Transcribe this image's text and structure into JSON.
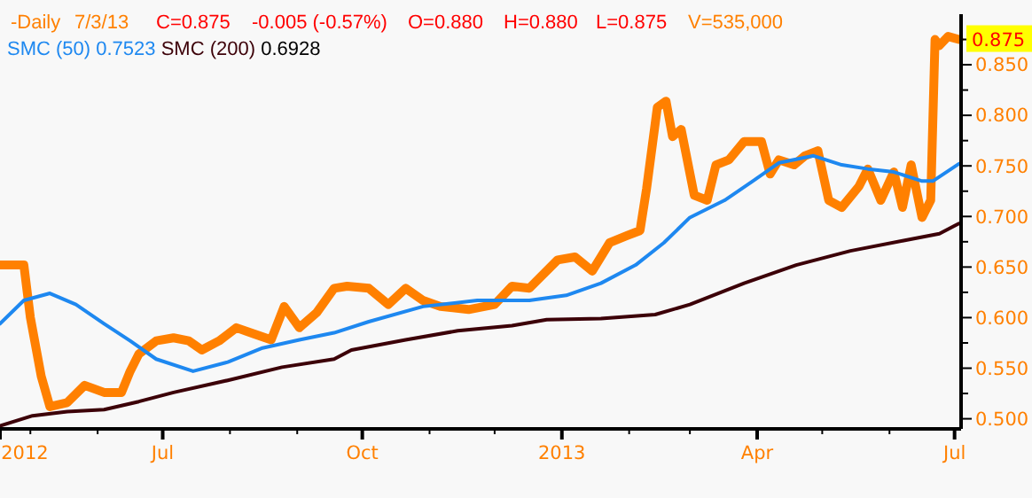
{
  "chart_data": {
    "type": "line",
    "legend": "top left",
    "marker": "none",
    "line_style": "solid",
    "grid": false,
    "annotations": [
      "-Daily",
      "7/3/13",
      "C=0.875",
      "-0.005 (-0.57%)",
      "O=0.880",
      "H=0.880",
      "L=0.875",
      "V=535,000",
      "0.7523",
      "0.6928",
      {
        "text": "0.875",
        "x": "2013-07-03",
        "y": 0.875
      }
    ],
    "xlim": [
      "2012-04-17",
      "2013-07-04"
    ],
    "xticks": [
      {
        "value": "2012-04-17",
        "label": "2012"
      },
      {
        "value": "2012-05-01",
        "label": null
      },
      {
        "value": "2012-06-01",
        "label": null
      },
      {
        "value": "2012-07-01",
        "label": "Jul"
      },
      {
        "value": "2012-08-01",
        "label": null
      },
      {
        "value": "2012-09-01",
        "label": null
      },
      {
        "value": "2012-10-01",
        "label": "Oct"
      },
      {
        "value": "2012-11-01",
        "label": null
      },
      {
        "value": "2012-12-01",
        "label": null
      },
      {
        "value": "2013-01-01",
        "label": "2013"
      },
      {
        "value": "2013-02-01",
        "label": null
      },
      {
        "value": "2013-03-01",
        "label": null
      },
      {
        "value": "2013-04-01",
        "label": "Apr"
      },
      {
        "value": "2013-05-01",
        "label": null
      },
      {
        "value": "2013-06-01",
        "label": null
      },
      {
        "value": "2013-07-01",
        "label": "Jul"
      }
    ],
    "ylim": [
      0.49,
      0.9
    ],
    "yticks": [
      {
        "value": 0.5,
        "label": "0.500"
      },
      {
        "value": 0.525,
        "label": null
      },
      {
        "value": 0.55,
        "label": "0.550"
      },
      {
        "value": 0.575,
        "label": null
      },
      {
        "value": 0.6,
        "label": "0.600"
      },
      {
        "value": 0.625,
        "label": null
      },
      {
        "value": 0.65,
        "label": "0.650"
      },
      {
        "value": 0.675,
        "label": null
      },
      {
        "value": 0.7,
        "label": "0.700"
      },
      {
        "value": 0.725,
        "label": null
      },
      {
        "value": 0.75,
        "label": "0.750"
      },
      {
        "value": 0.775,
        "label": null
      },
      {
        "value": 0.8,
        "label": "0.800"
      },
      {
        "value": 0.825,
        "label": null
      },
      {
        "value": 0.85,
        "label": "0.850"
      },
      {
        "value": 0.875,
        "label": null
      }
    ],
    "series": [
      {
        "color": "#ff8000",
        "x": [
          "2012-04-17",
          "2012-04-28",
          "2012-05-01",
          "2012-05-06",
          "2012-05-10",
          "2012-05-18",
          "2012-05-26",
          "2012-06-04",
          "2012-06-12",
          "2012-06-16",
          "2012-06-20",
          "2012-06-28",
          "2012-07-06",
          "2012-07-13",
          "2012-07-19",
          "2012-07-27",
          "2012-08-04",
          "2012-08-12",
          "2012-08-20",
          "2012-08-26",
          "2012-09-02",
          "2012-09-10",
          "2012-09-18",
          "2012-09-24",
          "2012-10-04",
          "2012-10-13",
          "2012-10-21",
          "2012-10-29",
          "2012-11-06",
          "2012-11-19",
          "2012-12-01",
          "2012-12-09",
          "2012-12-17",
          "2012-12-30",
          "2013-01-07",
          "2013-01-15",
          "2013-01-23",
          "2013-01-31",
          "2013-02-06",
          "2013-02-09",
          "2013-02-14",
          "2013-02-18",
          "2013-02-21",
          "2013-02-25",
          "2013-03-03",
          "2013-03-09",
          "2013-03-13",
          "2013-03-19",
          "2013-03-26",
          "2013-04-03",
          "2013-04-07",
          "2013-04-11",
          "2013-04-18",
          "2013-04-23",
          "2013-04-29",
          "2013-05-04",
          "2013-05-10",
          "2013-05-18",
          "2013-05-22",
          "2013-05-28",
          "2013-06-03",
          "2013-06-07",
          "2013-06-11",
          "2013-06-16",
          "2013-06-20",
          "2013-06-22",
          "2013-06-24",
          "2013-06-28",
          "2013-07-03"
        ],
        "values": [
          0.652,
          0.652,
          0.6,
          0.542,
          0.512,
          0.516,
          0.533,
          0.526,
          0.526,
          0.547,
          0.564,
          0.577,
          0.58,
          0.577,
          0.568,
          0.577,
          0.59,
          0.584,
          0.578,
          0.611,
          0.59,
          0.605,
          0.629,
          0.631,
          0.629,
          0.613,
          0.629,
          0.617,
          0.611,
          0.608,
          0.613,
          0.631,
          0.629,
          0.657,
          0.66,
          0.646,
          0.674,
          0.681,
          0.686,
          0.727,
          0.808,
          0.814,
          0.779,
          0.786,
          0.721,
          0.716,
          0.751,
          0.756,
          0.774,
          0.774,
          0.742,
          0.756,
          0.751,
          0.76,
          0.765,
          0.716,
          0.709,
          0.73,
          0.747,
          0.716,
          0.744,
          0.709,
          0.751,
          0.699,
          0.716,
          0.875,
          0.869,
          0.878,
          0.875
        ]
      },
      {
        "name": "SMC (50)",
        "color": "#1e88f0",
        "x": [
          "2012-04-17",
          "2012-04-28",
          "2012-05-10",
          "2012-05-22",
          "2012-06-04",
          "2012-06-16",
          "2012-06-28",
          "2012-07-15",
          "2012-07-31",
          "2012-08-16",
          "2012-09-02",
          "2012-09-18",
          "2012-10-04",
          "2012-10-29",
          "2012-11-23",
          "2012-12-17",
          "2013-01-03",
          "2013-01-19",
          "2013-02-04",
          "2013-02-17",
          "2013-03-01",
          "2013-03-17",
          "2013-03-30",
          "2013-04-11",
          "2013-04-27",
          "2013-05-10",
          "2013-05-22",
          "2013-06-03",
          "2013-06-16",
          "2013-06-21",
          "2013-07-03"
        ],
        "values": [
          0.594,
          0.617,
          0.624,
          0.613,
          0.594,
          0.577,
          0.559,
          0.547,
          0.556,
          0.57,
          0.578,
          0.585,
          0.596,
          0.611,
          0.617,
          0.617,
          0.622,
          0.634,
          0.652,
          0.674,
          0.699,
          0.716,
          0.735,
          0.753,
          0.76,
          0.751,
          0.747,
          0.744,
          0.735,
          0.735,
          0.752
        ]
      },
      {
        "name": "SMC (200)",
        "color": "#3c0008",
        "x": [
          "2012-04-17",
          "2012-05-02",
          "2012-05-18",
          "2012-06-04",
          "2012-06-20",
          "2012-07-06",
          "2012-07-31",
          "2012-08-25",
          "2012-09-18",
          "2012-09-26",
          "2012-10-21",
          "2012-11-14",
          "2012-12-09",
          "2012-12-25",
          "2013-01-19",
          "2013-02-13",
          "2013-03-01",
          "2013-03-26",
          "2013-04-19",
          "2013-05-14",
          "2013-06-07",
          "2013-06-24",
          "2013-07-03"
        ],
        "values": [
          0.493,
          0.503,
          0.507,
          0.509,
          0.517,
          0.526,
          0.538,
          0.551,
          0.559,
          0.568,
          0.578,
          0.587,
          0.592,
          0.598,
          0.599,
          0.603,
          0.613,
          0.634,
          0.652,
          0.666,
          0.676,
          0.683,
          0.693
        ]
      }
    ]
  }
}
